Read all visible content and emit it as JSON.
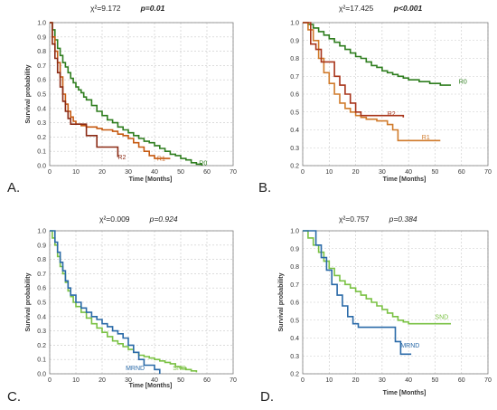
{
  "chart_data": [
    {
      "type": "line",
      "panel": "A.",
      "stat_left": "χ²=9.172",
      "stat_right": "p=0.01",
      "stat_right_bold": true,
      "xlabel": "Time [Months]",
      "ylabel": "Survival probability",
      "xlim": [
        0,
        70
      ],
      "ylim": [
        0,
        1.0
      ],
      "xticks": [
        0,
        10,
        20,
        30,
        40,
        50,
        60,
        70
      ],
      "yticks": [
        0,
        0.1,
        0.2,
        0.3,
        0.4,
        0.5,
        0.6,
        0.7,
        0.8,
        0.9,
        1.0
      ],
      "grid": true,
      "series": [
        {
          "name": "R0",
          "color": "#2e7d1e",
          "label_at": [
            57,
            0.02
          ],
          "x": [
            0,
            1,
            2,
            3,
            4,
            5,
            6,
            7,
            8,
            9,
            10,
            11,
            12,
            13,
            14,
            16,
            18,
            20,
            22,
            24,
            26,
            28,
            30,
            32,
            34,
            36,
            38,
            40,
            42,
            44,
            46,
            48,
            50,
            52,
            54,
            56,
            58
          ],
          "y": [
            1.0,
            0.95,
            0.88,
            0.82,
            0.77,
            0.72,
            0.69,
            0.65,
            0.61,
            0.58,
            0.55,
            0.53,
            0.51,
            0.48,
            0.46,
            0.42,
            0.38,
            0.35,
            0.32,
            0.3,
            0.27,
            0.25,
            0.23,
            0.21,
            0.19,
            0.17,
            0.16,
            0.14,
            0.12,
            0.1,
            0.08,
            0.07,
            0.05,
            0.04,
            0.02,
            0.01,
            0.0
          ]
        },
        {
          "name": "R1",
          "color": "#c65a11",
          "label_at": [
            41,
            0.05
          ],
          "x": [
            0,
            1,
            2,
            3,
            4,
            5,
            6,
            7,
            8,
            9,
            10,
            12,
            14,
            16,
            18,
            20,
            22,
            24,
            26,
            28,
            30,
            32,
            34,
            36,
            38,
            40,
            42,
            44,
            46
          ],
          "y": [
            1.0,
            0.9,
            0.8,
            0.72,
            0.62,
            0.5,
            0.43,
            0.38,
            0.34,
            0.31,
            0.29,
            0.28,
            0.27,
            0.27,
            0.26,
            0.25,
            0.25,
            0.24,
            0.22,
            0.21,
            0.19,
            0.16,
            0.13,
            0.1,
            0.07,
            0.05,
            0.05,
            0.05,
            0.05
          ]
        },
        {
          "name": "R2",
          "color": "#8b2a14",
          "label_at": [
            26,
            0.06
          ],
          "x": [
            0,
            1,
            2,
            3,
            4,
            5,
            6,
            7,
            8,
            10,
            12,
            14,
            16,
            18,
            20,
            22,
            24,
            26
          ],
          "y": [
            1.0,
            0.85,
            0.75,
            0.65,
            0.55,
            0.45,
            0.38,
            0.33,
            0.29,
            0.29,
            0.29,
            0.21,
            0.21,
            0.13,
            0.13,
            0.13,
            0.13,
            0.06
          ]
        }
      ]
    },
    {
      "type": "line",
      "panel": "B.",
      "stat_left": "χ²=17.425",
      "stat_right": "p<0.001",
      "stat_right_bold": true,
      "xlabel": "Time [Months]",
      "ylabel": "",
      "xlim": [
        0,
        70
      ],
      "ylim": [
        0.2,
        1.0
      ],
      "xticks": [
        0,
        10,
        20,
        30,
        40,
        50,
        60,
        70
      ],
      "yticks": [
        0.2,
        0.3,
        0.4,
        0.5,
        0.6,
        0.7,
        0.8,
        0.9,
        1.0
      ],
      "grid": true,
      "series": [
        {
          "name": "R0",
          "color": "#2e7d1e",
          "label_at": [
            59,
            0.67
          ],
          "x": [
            0,
            2,
            4,
            6,
            8,
            10,
            12,
            14,
            16,
            18,
            20,
            22,
            24,
            26,
            28,
            30,
            32,
            34,
            36,
            38,
            40,
            44,
            48,
            52,
            56
          ],
          "y": [
            1.0,
            0.99,
            0.97,
            0.95,
            0.93,
            0.91,
            0.89,
            0.87,
            0.85,
            0.83,
            0.81,
            0.8,
            0.78,
            0.76,
            0.75,
            0.73,
            0.72,
            0.71,
            0.7,
            0.69,
            0.68,
            0.67,
            0.66,
            0.65,
            0.65
          ]
        },
        {
          "name": "R1",
          "color": "#d07a2a",
          "label_at": [
            45,
            0.36
          ],
          "x": [
            0,
            2,
            4,
            6,
            8,
            10,
            12,
            14,
            16,
            18,
            20,
            22,
            24,
            26,
            28,
            30,
            32,
            34,
            36,
            40,
            44,
            48,
            52
          ],
          "y": [
            1.0,
            0.96,
            0.9,
            0.8,
            0.72,
            0.66,
            0.6,
            0.55,
            0.52,
            0.5,
            0.48,
            0.47,
            0.46,
            0.46,
            0.45,
            0.45,
            0.43,
            0.4,
            0.34,
            0.34,
            0.34,
            0.34,
            0.34
          ]
        },
        {
          "name": "R2",
          "color": "#a8341a",
          "label_at": [
            32,
            0.49
          ],
          "x": [
            0,
            3,
            5,
            7,
            10,
            12,
            14,
            16,
            18,
            20,
            22,
            24,
            26,
            28,
            30,
            32,
            34,
            36,
            38
          ],
          "y": [
            1.0,
            0.88,
            0.85,
            0.78,
            0.78,
            0.7,
            0.65,
            0.6,
            0.55,
            0.5,
            0.48,
            0.48,
            0.48,
            0.48,
            0.48,
            0.48,
            0.48,
            0.48,
            0.47
          ]
        }
      ]
    },
    {
      "type": "line",
      "panel": "C.",
      "stat_left": "χ²=0.009",
      "stat_right": "p=0.924",
      "stat_right_bold": false,
      "xlabel": "Time [Months]",
      "ylabel": "Survival probability",
      "xlim": [
        0,
        70
      ],
      "ylim": [
        0,
        1.0
      ],
      "xticks": [
        0,
        10,
        20,
        30,
        40,
        50,
        60,
        70
      ],
      "yticks": [
        0,
        0.1,
        0.2,
        0.3,
        0.4,
        0.5,
        0.6,
        0.7,
        0.8,
        0.9,
        1.0
      ],
      "grid": true,
      "series": [
        {
          "name": "SND",
          "color": "#7ac143",
          "label_at": [
            47,
            0.04
          ],
          "x": [
            0,
            1,
            2,
            3,
            4,
            5,
            6,
            7,
            8,
            9,
            10,
            12,
            14,
            16,
            18,
            20,
            22,
            24,
            26,
            28,
            30,
            32,
            34,
            36,
            38,
            40,
            42,
            44,
            46,
            48,
            50,
            52,
            54,
            56
          ],
          "y": [
            1.0,
            0.95,
            0.9,
            0.82,
            0.75,
            0.7,
            0.64,
            0.58,
            0.54,
            0.5,
            0.47,
            0.43,
            0.39,
            0.35,
            0.32,
            0.29,
            0.26,
            0.23,
            0.21,
            0.19,
            0.17,
            0.15,
            0.13,
            0.12,
            0.11,
            0.1,
            0.09,
            0.08,
            0.07,
            0.05,
            0.04,
            0.03,
            0.02,
            0.01
          ]
        },
        {
          "name": "MRND",
          "color": "#2a6aa8",
          "label_at": [
            29,
            0.04
          ],
          "x": [
            0,
            2,
            3,
            4,
            5,
            6,
            7,
            8,
            10,
            12,
            14,
            16,
            18,
            20,
            22,
            24,
            26,
            28,
            30,
            32,
            34,
            36,
            38,
            40,
            42
          ],
          "y": [
            1.0,
            0.92,
            0.85,
            0.78,
            0.72,
            0.65,
            0.6,
            0.55,
            0.5,
            0.46,
            0.43,
            0.4,
            0.38,
            0.35,
            0.33,
            0.3,
            0.28,
            0.25,
            0.2,
            0.15,
            0.1,
            0.06,
            0.06,
            0.03,
            0.0
          ]
        }
      ]
    },
    {
      "type": "line",
      "panel": "D.",
      "stat_left": "χ²=0.757",
      "stat_right": "p=0.384",
      "stat_right_bold": false,
      "xlabel": "Time [Months]",
      "ylabel": "Survival probability",
      "xlim": [
        0,
        70
      ],
      "ylim": [
        0.2,
        1.0
      ],
      "xticks": [
        0,
        10,
        20,
        30,
        40,
        50,
        60,
        70
      ],
      "yticks": [
        0.2,
        0.3,
        0.4,
        0.5,
        0.6,
        0.7,
        0.8,
        0.9,
        1.0
      ],
      "grid": true,
      "series": [
        {
          "name": "SND",
          "color": "#7ac143",
          "label_at": [
            50,
            0.52
          ],
          "x": [
            0,
            2,
            4,
            6,
            8,
            10,
            12,
            14,
            16,
            18,
            20,
            22,
            24,
            26,
            28,
            30,
            32,
            34,
            36,
            38,
            40,
            44,
            48,
            52,
            56
          ],
          "y": [
            1.0,
            0.96,
            0.92,
            0.88,
            0.83,
            0.79,
            0.75,
            0.72,
            0.7,
            0.68,
            0.66,
            0.64,
            0.62,
            0.6,
            0.58,
            0.56,
            0.54,
            0.52,
            0.5,
            0.49,
            0.48,
            0.48,
            0.48,
            0.48,
            0.48
          ]
        },
        {
          "name": "MRND",
          "color": "#2a6aa8",
          "label_at": [
            37,
            0.36
          ],
          "x": [
            0,
            5,
            7,
            9,
            11,
            13,
            15,
            17,
            19,
            21,
            23,
            25,
            27,
            29,
            31,
            33,
            35,
            37,
            39,
            41
          ],
          "y": [
            1.0,
            0.92,
            0.85,
            0.78,
            0.7,
            0.64,
            0.58,
            0.52,
            0.48,
            0.46,
            0.46,
            0.46,
            0.46,
            0.46,
            0.46,
            0.46,
            0.38,
            0.31,
            0.31,
            0.31
          ]
        }
      ]
    }
  ]
}
